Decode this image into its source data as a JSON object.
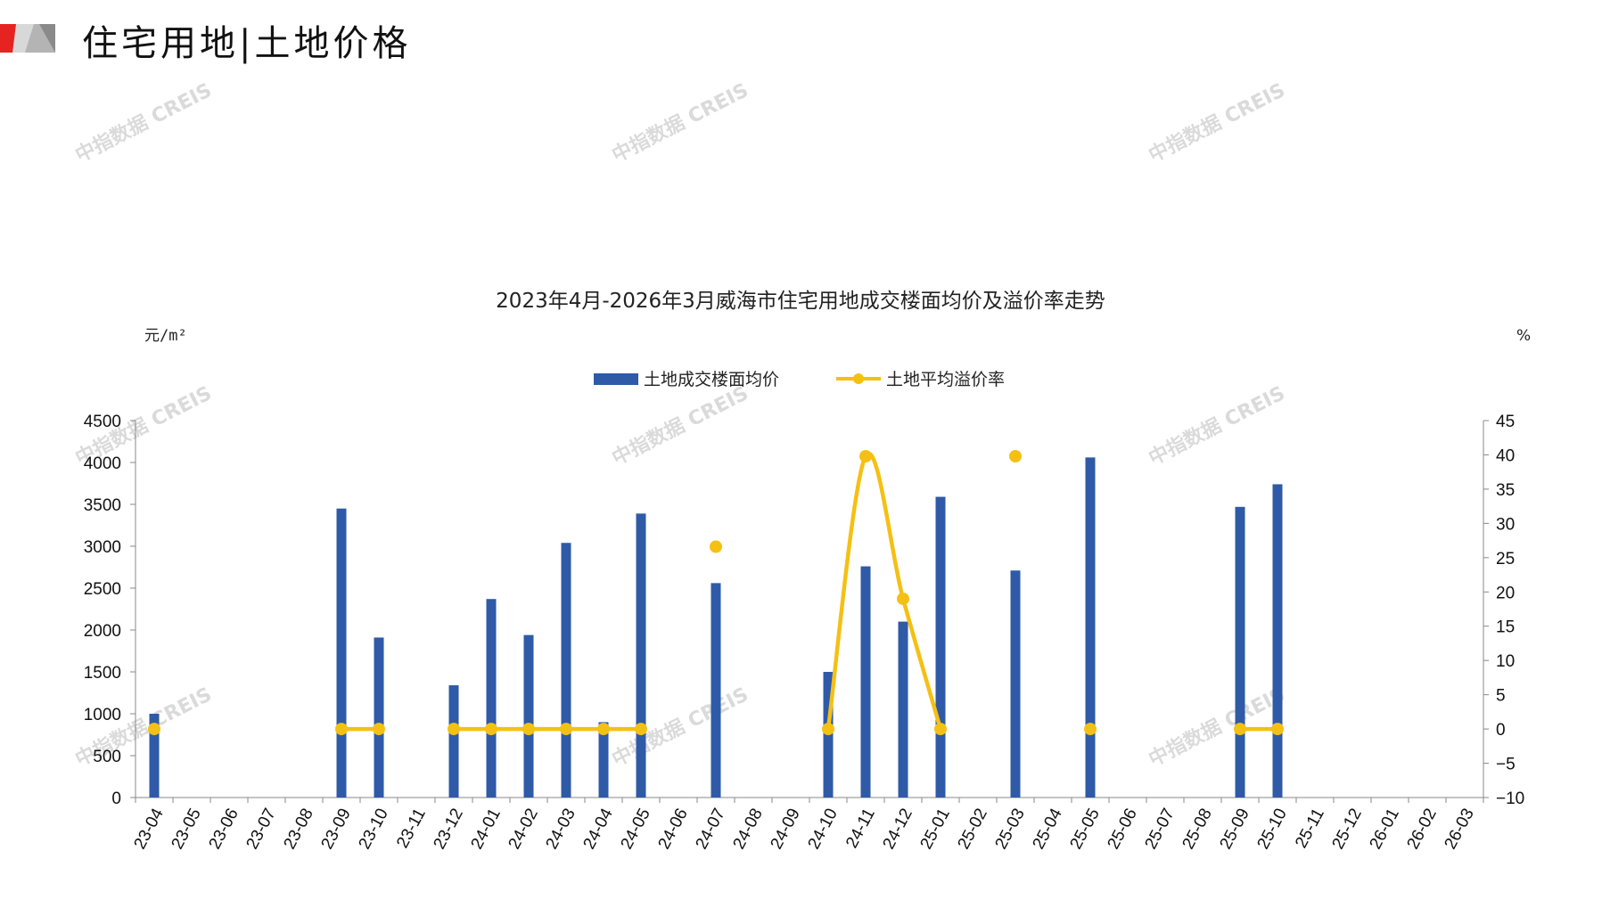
{
  "header": {
    "title": "住宅用地|土地价格"
  },
  "watermark": "中指数据 CREIS",
  "colors": {
    "bar": "#2e5aa7",
    "line": "#f5c014",
    "logo_red": "#e52421",
    "logo_grey": "#9a9a9a"
  },
  "chart_data": {
    "type": "bar",
    "title": "2023年4月-2026年3月威海市住宅用地成交楼面均价及溢价率走势",
    "y_left_unit": "元/m²",
    "y_right_unit": "%",
    "ylim_left": [
      0,
      4500
    ],
    "yticks_left": [
      0,
      500,
      1000,
      1500,
      2000,
      2500,
      3000,
      3500,
      4000,
      4500
    ],
    "ylim_right": [
      -10,
      45
    ],
    "yticks_right": [
      -10,
      -5,
      0,
      5,
      10,
      15,
      20,
      25,
      30,
      35,
      40,
      45
    ],
    "legend_position": "top-center",
    "categories": [
      "23-04",
      "23-05",
      "23-06",
      "23-07",
      "23-08",
      "23-09",
      "23-10",
      "23-11",
      "23-12",
      "24-01",
      "24-02",
      "24-03",
      "24-04",
      "24-05",
      "24-06",
      "24-07",
      "24-08",
      "24-09",
      "24-10",
      "24-11",
      "24-12",
      "25-01",
      "25-02",
      "25-03",
      "25-04",
      "25-05",
      "25-06",
      "25-07",
      "25-08",
      "25-09",
      "25-10",
      "25-11",
      "25-12",
      "26-01",
      "26-02",
      "26-03"
    ],
    "series": [
      {
        "name": "土地成交楼面均价",
        "type": "bar",
        "axis": "left",
        "values": [
          1000,
          null,
          null,
          null,
          null,
          3450,
          1910,
          null,
          1340,
          2370,
          1940,
          3040,
          900,
          3390,
          null,
          2560,
          null,
          null,
          1500,
          2760,
          2100,
          3590,
          null,
          2710,
          null,
          4060,
          null,
          null,
          null,
          3470,
          3740,
          null,
          null,
          null,
          null,
          null
        ]
      },
      {
        "name": "土地平均溢价率",
        "type": "line",
        "axis": "right",
        "values": [
          0,
          null,
          null,
          null,
          null,
          0,
          0,
          null,
          0,
          0,
          0,
          0,
          0,
          0,
          null,
          26.6,
          null,
          null,
          0,
          39.8,
          19,
          0,
          null,
          39.8,
          null,
          0,
          null,
          null,
          null,
          0,
          0,
          null,
          null,
          null,
          null,
          null
        ]
      }
    ]
  }
}
